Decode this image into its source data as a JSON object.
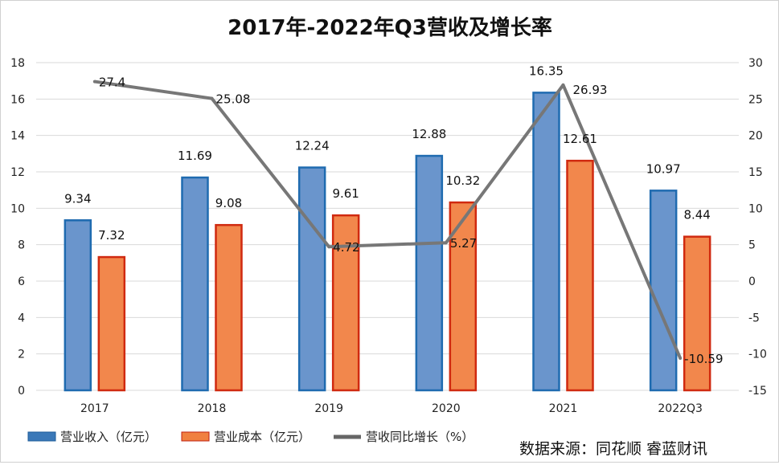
{
  "chart_data": {
    "type": "bar+line",
    "title": "2017年-2022年Q3营收及增长率",
    "categories": [
      "2017",
      "2018",
      "2019",
      "2020",
      "2021",
      "2022Q3"
    ],
    "series": [
      {
        "name": "营业收入（亿元）",
        "type": "bar",
        "axis": "left",
        "color": "#3a78b8",
        "values": [
          9.34,
          11.69,
          12.24,
          12.88,
          16.35,
          10.97
        ]
      },
      {
        "name": "营业成本（亿元）",
        "type": "bar",
        "axis": "left",
        "color": "#f08040",
        "values": [
          7.32,
          9.08,
          9.61,
          10.32,
          12.61,
          8.44
        ]
      },
      {
        "name": "营收同比增长（%）",
        "type": "line",
        "axis": "right",
        "color": "#777777",
        "values": [
          27.4,
          25.08,
          4.72,
          5.27,
          26.93,
          -10.59
        ]
      }
    ],
    "y_left": {
      "min": 0,
      "max": 18,
      "step": 2
    },
    "y_right": {
      "min": -15,
      "max": 30,
      "step": 5
    },
    "grid": true,
    "legend": "bottom-left",
    "source": "数据来源：同花顺 睿蓝财讯"
  }
}
